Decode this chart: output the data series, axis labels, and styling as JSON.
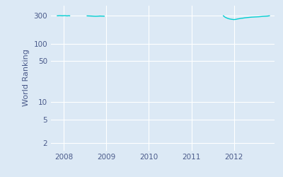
{
  "ylabel": "World Ranking",
  "line_color": "#00CED1",
  "background_color": "#dce9f5",
  "axes_background": "#dce9f5",
  "figure_background": "#dce9f5",
  "grid_color": "#ffffff",
  "yticks": [
    2,
    5,
    10,
    50,
    100,
    300
  ],
  "ytick_labels": [
    "2",
    "5",
    "10",
    "50",
    "100",
    "300"
  ],
  "xlim_start": 2007.7,
  "xlim_end": 2012.95,
  "ylim_bottom": 1.5,
  "ylim_top": 450,
  "xticks": [
    2008,
    2009,
    2010,
    2011,
    2012
  ],
  "segments": [
    {
      "x": [
        2007.85,
        2007.88,
        2007.91,
        2007.94,
        2007.97,
        2008.0,
        2008.03,
        2008.06,
        2008.08,
        2008.11,
        2008.14
      ],
      "y": [
        298,
        299,
        300,
        299,
        298,
        299,
        300,
        298,
        297,
        299,
        298
      ]
    },
    {
      "x": [
        2008.55,
        2008.6,
        2008.65,
        2008.7,
        2008.75,
        2008.8,
        2008.85,
        2008.9,
        2008.95
      ],
      "y": [
        297,
        296,
        295,
        293,
        292,
        293,
        295,
        294,
        293
      ]
    },
    {
      "x": [
        2011.75,
        2011.78,
        2011.82,
        2011.86,
        2011.9,
        2011.94,
        2011.98,
        2012.0,
        2012.04,
        2012.08,
        2012.12,
        2012.17,
        2012.21,
        2012.25,
        2012.29,
        2012.33,
        2012.37,
        2012.42,
        2012.46,
        2012.5,
        2012.54,
        2012.58,
        2012.63,
        2012.67,
        2012.71,
        2012.75,
        2012.79,
        2012.83
      ],
      "y": [
        298,
        285,
        275,
        268,
        263,
        260,
        258,
        257,
        259,
        263,
        266,
        270,
        272,
        275,
        277,
        279,
        281,
        283,
        284,
        285,
        286,
        287,
        289,
        291,
        292,
        293,
        295,
        298
      ]
    }
  ],
  "tick_color": "#4a5a8a",
  "label_color": "#4a5a8a",
  "ylabel_fontsize": 8,
  "tick_fontsize": 7.5
}
